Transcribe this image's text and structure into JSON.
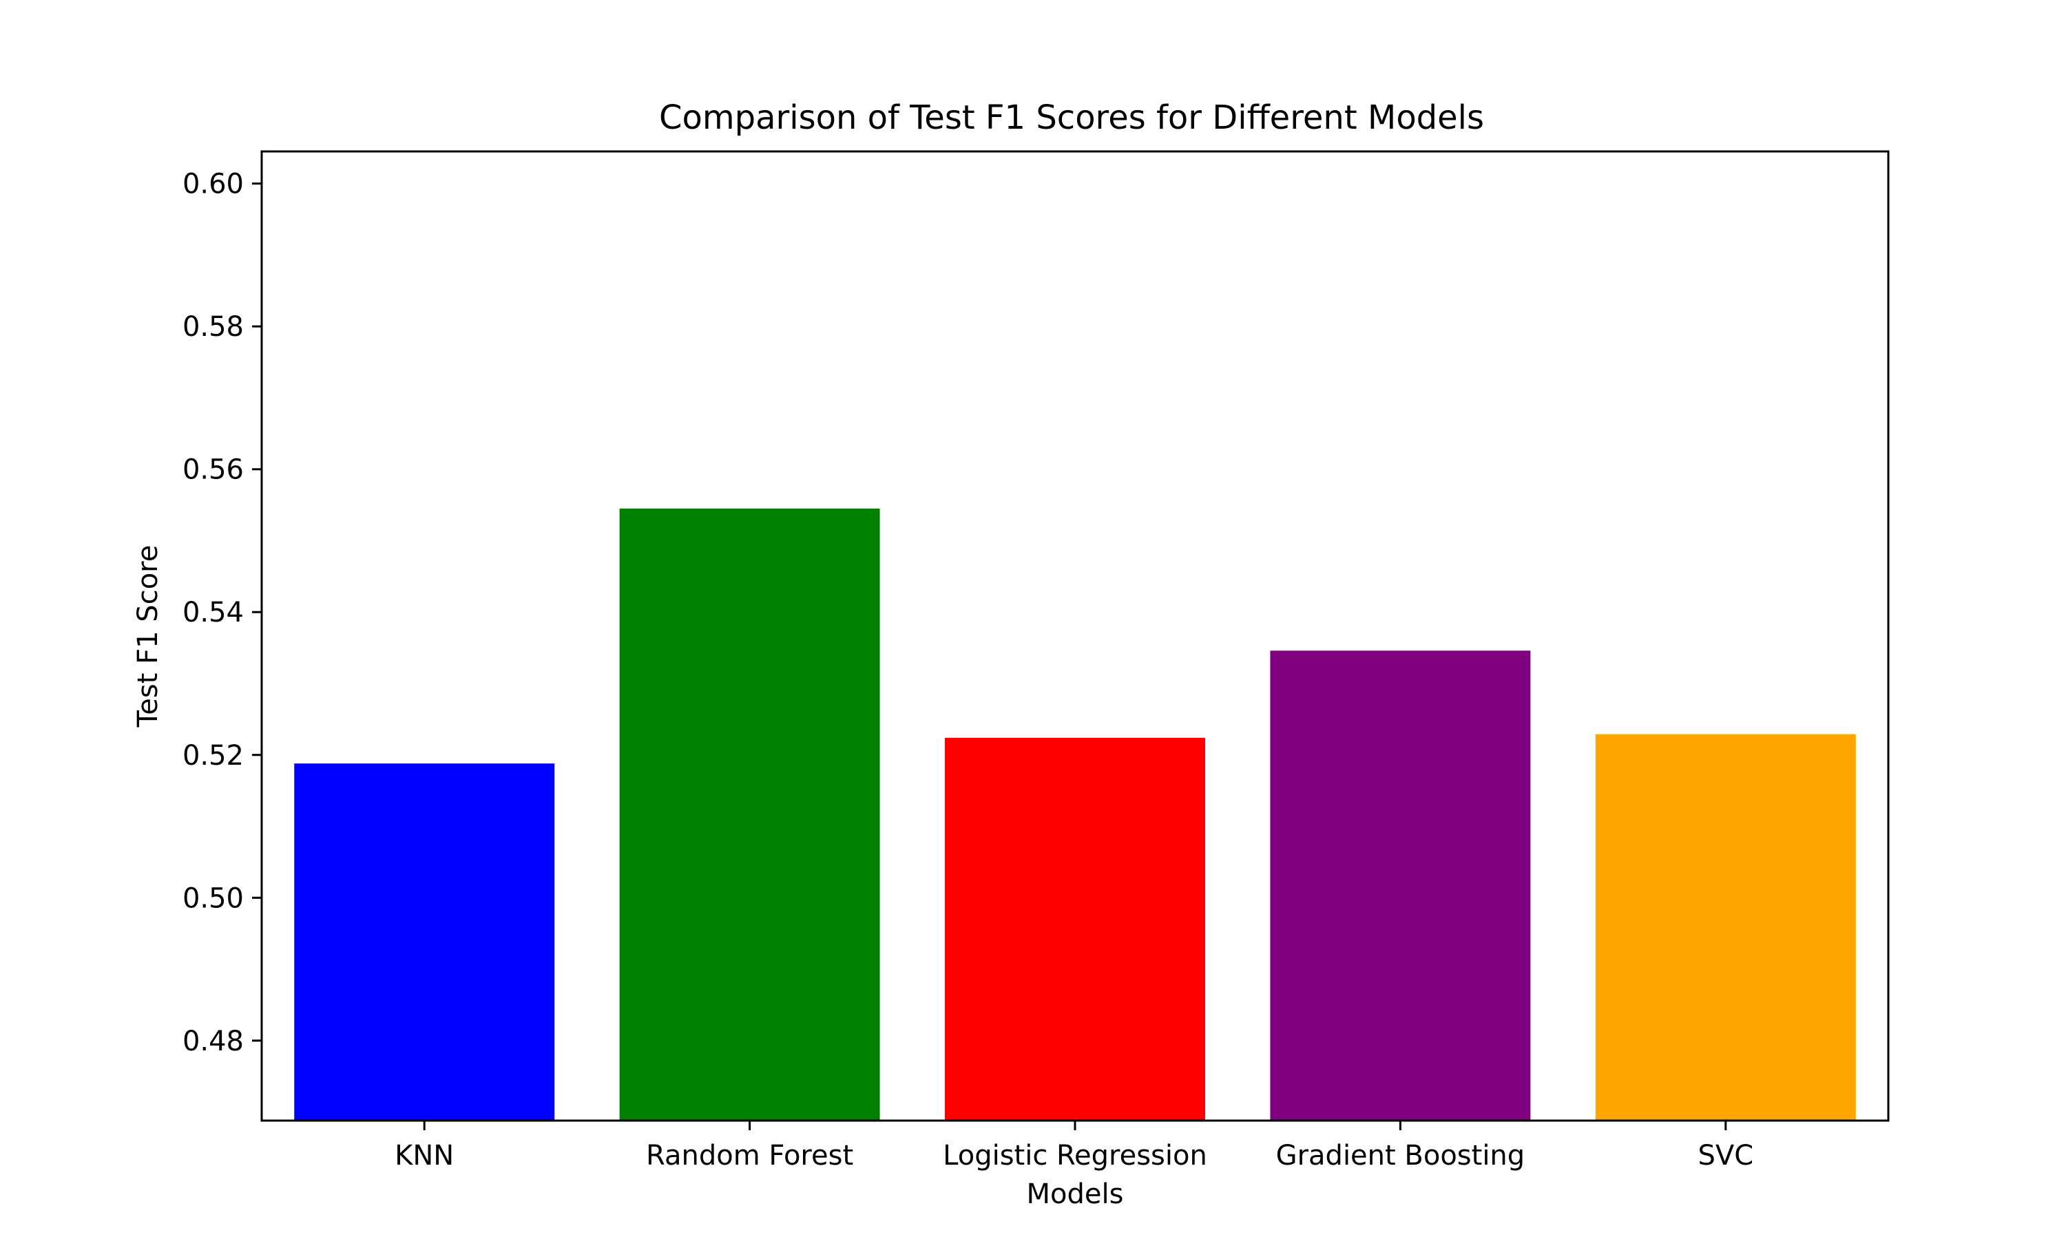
{
  "chart_data": {
    "type": "bar",
    "title": "Comparison of Test F1 Scores for Different Models",
    "xlabel": "Models",
    "ylabel": "Test F1 Score",
    "categories": [
      "KNN",
      "Random Forest",
      "Logistic Regression",
      "Gradient Boosting",
      "SVC"
    ],
    "values": [
      0.5188,
      0.5545,
      0.5224,
      0.5346,
      0.5229
    ],
    "colors": [
      "#0000ff",
      "#008000",
      "#ff0000",
      "#800080",
      "#ffa500"
    ],
    "ylim": [
      0.4688,
      0.6045
    ],
    "yticks": [
      0.48,
      0.5,
      0.52,
      0.54,
      0.56,
      0.58,
      0.6
    ],
    "ytick_labels": [
      "0.48",
      "0.50",
      "0.52",
      "0.54",
      "0.56",
      "0.58",
      "0.60"
    ],
    "grid": false,
    "legend": "none"
  }
}
